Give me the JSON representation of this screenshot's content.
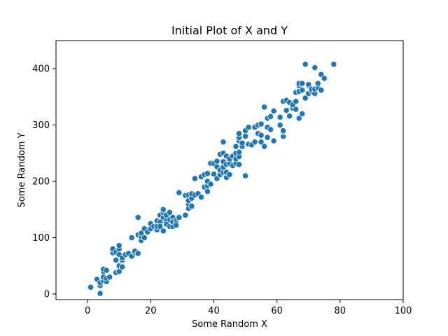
{
  "chart_data": {
    "type": "scatter",
    "title": "Initial Plot of X and Y",
    "xlabel": "Some Random X",
    "ylabel": "Some Random Y",
    "xlim": [
      -10,
      100
    ],
    "ylim": [
      -10,
      450
    ],
    "xticks": [
      0,
      20,
      40,
      60,
      80,
      100
    ],
    "yticks": [
      0,
      100,
      200,
      300,
      400
    ],
    "grid": false,
    "color": "#1f77b4",
    "points": [
      [
        1,
        12
      ],
      [
        3,
        26
      ],
      [
        4,
        1
      ],
      [
        4,
        15
      ],
      [
        4,
        20
      ],
      [
        5,
        24
      ],
      [
        5,
        30
      ],
      [
        5,
        40
      ],
      [
        5,
        44
      ],
      [
        6,
        22
      ],
      [
        6,
        28
      ],
      [
        6,
        42
      ],
      [
        7,
        30
      ],
      [
        8,
        73
      ],
      [
        8,
        80
      ],
      [
        9,
        60
      ],
      [
        9,
        38
      ],
      [
        9,
        74
      ],
      [
        10,
        40
      ],
      [
        10,
        50
      ],
      [
        10,
        70
      ],
      [
        10,
        80
      ],
      [
        10,
        86
      ],
      [
        11,
        48
      ],
      [
        11,
        60
      ],
      [
        11,
        64
      ],
      [
        12,
        70
      ],
      [
        13,
        72
      ],
      [
        14,
        67
      ],
      [
        14,
        100
      ],
      [
        15,
        73
      ],
      [
        15,
        76
      ],
      [
        16,
        72
      ],
      [
        16,
        105
      ],
      [
        16,
        136
      ],
      [
        17,
        95
      ],
      [
        17,
        102
      ],
      [
        17,
        108
      ],
      [
        18,
        100
      ],
      [
        18,
        116
      ],
      [
        19,
        110
      ],
      [
        20,
        116
      ],
      [
        20,
        125
      ],
      [
        21,
        120
      ],
      [
        22,
        114
      ],
      [
        22,
        130
      ],
      [
        22,
        120
      ],
      [
        23,
        128
      ],
      [
        23,
        120
      ],
      [
        23,
        140
      ],
      [
        24,
        112
      ],
      [
        24,
        136
      ],
      [
        24,
        145
      ],
      [
        24,
        150
      ],
      [
        25,
        130
      ],
      [
        25,
        124
      ],
      [
        25,
        140
      ],
      [
        26,
        145
      ],
      [
        26,
        120
      ],
      [
        26,
        132
      ],
      [
        27,
        136
      ],
      [
        27,
        120
      ],
      [
        27,
        128
      ],
      [
        28,
        130
      ],
      [
        28,
        125
      ],
      [
        28,
        122
      ],
      [
        29,
        136
      ],
      [
        29,
        180
      ],
      [
        31,
        140
      ],
      [
        31,
        175
      ],
      [
        32,
        152
      ],
      [
        32,
        160
      ],
      [
        32,
        166
      ],
      [
        32,
        176
      ],
      [
        33,
        156
      ],
      [
        33,
        170
      ],
      [
        33,
        178
      ],
      [
        34,
        176
      ],
      [
        34,
        205
      ],
      [
        35,
        178
      ],
      [
        36,
        172
      ],
      [
        36,
        208
      ],
      [
        37,
        190
      ],
      [
        37,
        212
      ],
      [
        38,
        182
      ],
      [
        38,
        192
      ],
      [
        38,
        200
      ],
      [
        38,
        214
      ],
      [
        39,
        195
      ],
      [
        39,
        232
      ],
      [
        40,
        213
      ],
      [
        40,
        232
      ],
      [
        41,
        205
      ],
      [
        41,
        226
      ],
      [
        41,
        236
      ],
      [
        42,
        212
      ],
      [
        42,
        220
      ],
      [
        42,
        248
      ],
      [
        43,
        216
      ],
      [
        43,
        225
      ],
      [
        43,
        235
      ],
      [
        43,
        250
      ],
      [
        43,
        270
      ],
      [
        44,
        207
      ],
      [
        44,
        216
      ],
      [
        44,
        230
      ],
      [
        44,
        245
      ],
      [
        45,
        232
      ],
      [
        45,
        240
      ],
      [
        45,
        212
      ],
      [
        46,
        245
      ],
      [
        46,
        228
      ],
      [
        47,
        232
      ],
      [
        47,
        240
      ],
      [
        47,
        250
      ],
      [
        47,
        262
      ],
      [
        48,
        244
      ],
      [
        48,
        252
      ],
      [
        48,
        230
      ],
      [
        48,
        272
      ],
      [
        48,
        278
      ],
      [
        48,
        285
      ],
      [
        49,
        262
      ],
      [
        49,
        268
      ],
      [
        50,
        210
      ],
      [
        50,
        280
      ],
      [
        50,
        290
      ],
      [
        51,
        266
      ],
      [
        51,
        296
      ],
      [
        52,
        265
      ],
      [
        53,
        270
      ],
      [
        53,
        296
      ],
      [
        54,
        285
      ],
      [
        54,
        300
      ],
      [
        55,
        270
      ],
      [
        55,
        282
      ],
      [
        55,
        302
      ],
      [
        56,
        262
      ],
      [
        56,
        332
      ],
      [
        57,
        278
      ],
      [
        57,
        296
      ],
      [
        57,
        312
      ],
      [
        58,
        292
      ],
      [
        58,
        315
      ],
      [
        59,
        272
      ],
      [
        59,
        325
      ],
      [
        61,
        300
      ],
      [
        61,
        314
      ],
      [
        62,
        280
      ],
      [
        62,
        288
      ],
      [
        62,
        290
      ],
      [
        62,
        342
      ],
      [
        63,
        326
      ],
      [
        63,
        344
      ],
      [
        64,
        316
      ],
      [
        64,
        340
      ],
      [
        65,
        330
      ],
      [
        65,
        336
      ],
      [
        66,
        328
      ],
      [
        66,
        342
      ],
      [
        66,
        358
      ],
      [
        67,
        312
      ],
      [
        67,
        360
      ],
      [
        67,
        370
      ],
      [
        67,
        374
      ],
      [
        68,
        320
      ],
      [
        68,
        362
      ],
      [
        68,
        374
      ],
      [
        69,
        348
      ],
      [
        69,
        408
      ],
      [
        70,
        356
      ],
      [
        70,
        370
      ],
      [
        70,
        372
      ],
      [
        71,
        360
      ],
      [
        71,
        364
      ],
      [
        72,
        356
      ],
      [
        72,
        364
      ],
      [
        72,
        402
      ],
      [
        73,
        366
      ],
      [
        73,
        374
      ],
      [
        74,
        362
      ],
      [
        74,
        390
      ],
      [
        75,
        383
      ],
      [
        78,
        408
      ]
    ]
  }
}
